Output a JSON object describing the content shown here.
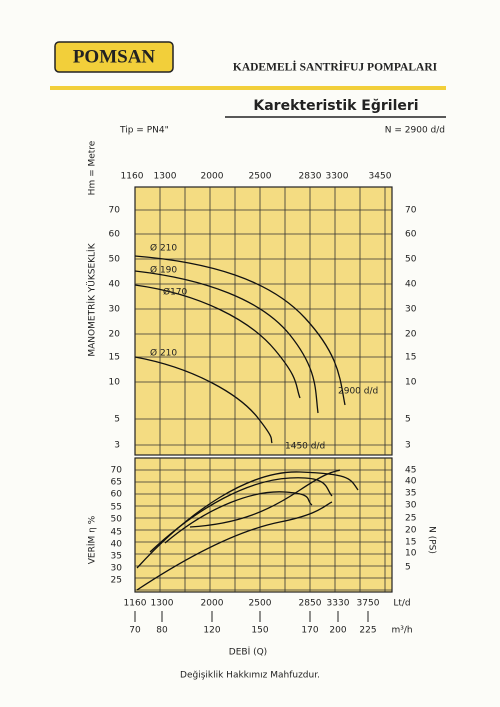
{
  "header": {
    "brand": "POMSAN",
    "title": "KADEMELİ SANTRİFUJ POMPALARI",
    "subtitle": "Karekteristik Eğrileri"
  },
  "specs": {
    "type": "Tip = PN4\"",
    "speed": "N = 2900 d/d"
  },
  "chart": {
    "head_axis_title": "Hm = Metre",
    "head_label": "MANOMETRİK YÜKSEKLİK",
    "efficiency_label": "VERİM η %",
    "power_label": "N (PS)",
    "top_ticks": [
      "1160",
      "1300",
      "2000",
      "2500",
      "2830",
      "3300",
      "3450"
    ],
    "head_ticks_left": [
      "70",
      "60",
      "50",
      "40",
      "30",
      "20",
      "15",
      "10",
      "5",
      "3"
    ],
    "head_ticks_right": [
      "70",
      "60",
      "50",
      "40",
      "30",
      "20",
      "15",
      "10",
      "5",
      "3"
    ],
    "efficiency_ticks": [
      "70",
      "65",
      "60",
      "55",
      "50",
      "45",
      "40",
      "35",
      "30",
      "25"
    ],
    "power_ticks": [
      "45",
      "40",
      "35",
      "30",
      "25",
      "20",
      "15",
      "10",
      "5"
    ],
    "flow_ticks": [
      "1160",
      "1300",
      "2000",
      "2500",
      "2850",
      "3330",
      "3750"
    ],
    "flow_unit": "Lt/d",
    "flow_m3h_ticks": [
      "70",
      "80",
      "120",
      "150",
      "170",
      "200",
      "225"
    ],
    "flow_m3h_unit": "m³/h",
    "curve_labels": [
      "Ø 210",
      "Ø 190",
      "Ø170",
      "Ø 210",
      "2900 d/d",
      "1450 d/d"
    ],
    "x_axis_title": "DEBİ (Q)"
  },
  "footer": "Değişiklik Hakkımız Mahfuzdur."
}
